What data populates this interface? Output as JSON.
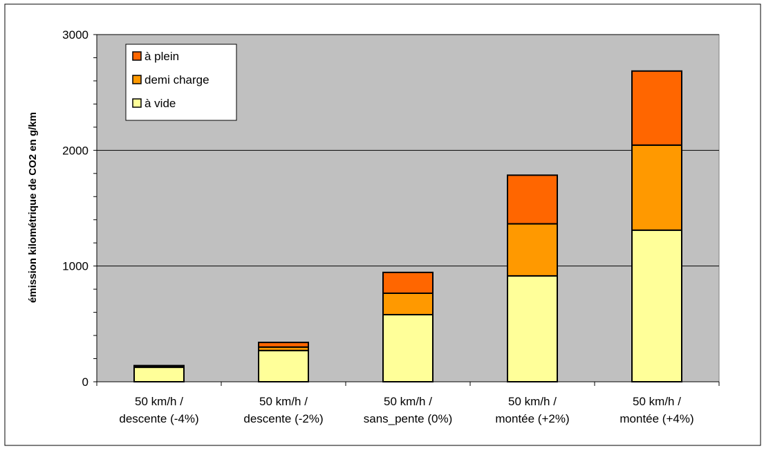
{
  "chart_data": {
    "type": "bar",
    "stacked": true,
    "title": "",
    "xlabel": "",
    "ylabel": "émission kilométrique de CO2 en g/km",
    "ylim": [
      0,
      3000
    ],
    "yticks": [
      "0",
      "1000",
      "2000",
      "3000"
    ],
    "grid": true,
    "legend_position": "top-left",
    "categories": [
      [
        "50 km/h /",
        "descente (-4%)"
      ],
      [
        "50 km/h /",
        "descente (-2%)"
      ],
      [
        "50 km/h /",
        "sans_pente (0%)"
      ],
      [
        "50 km/h /",
        "montée (+2%)"
      ],
      [
        "50 km/h /",
        "montée (+4%)"
      ]
    ],
    "series": [
      {
        "name": "à vide",
        "color": "#FFFF99",
        "values": [
          125,
          270,
          580,
          915,
          1310
        ]
      },
      {
        "name": "demi charge",
        "color": "#FF9900",
        "values": [
          10,
          30,
          185,
          450,
          735
        ]
      },
      {
        "name": "à plein",
        "color": "#FF6600",
        "values": [
          5,
          40,
          180,
          420,
          640
        ]
      }
    ],
    "legend_order": [
      "à plein",
      "demi charge",
      "à vide"
    ],
    "colors": {
      "plot_background": "#C0C0C0",
      "gridline": "#000000",
      "outer_border": "#000000"
    }
  }
}
